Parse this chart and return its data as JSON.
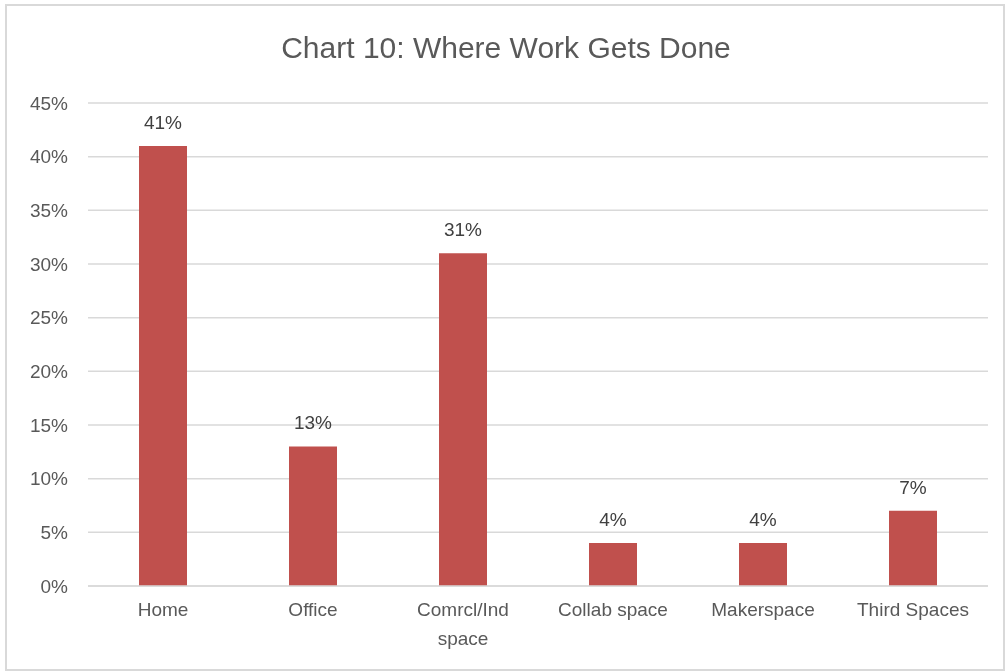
{
  "chart_data": {
    "type": "bar",
    "title": "Chart 10: Where Work Gets Done",
    "categories": [
      "Home",
      "Office",
      "Comrcl/Ind space",
      "Collab space",
      "Makerspace",
      "Third Spaces"
    ],
    "values": [
      41,
      13,
      31,
      4,
      4,
      7
    ],
    "color": "#c0504d",
    "value_labels": [
      "41%",
      "13%",
      "31%",
      "4%",
      "4%",
      "7%"
    ],
    "ylim": [
      0,
      45
    ],
    "yticks": [
      {
        "value": 0,
        "label": "0%"
      },
      {
        "value": 5,
        "label": "5%"
      },
      {
        "value": 10,
        "label": "10%"
      },
      {
        "value": 15,
        "label": "15%"
      },
      {
        "value": 20,
        "label": "20%"
      },
      {
        "value": 25,
        "label": "25%"
      },
      {
        "value": 30,
        "label": "30%"
      },
      {
        "value": 35,
        "label": "35%"
      },
      {
        "value": 40,
        "label": "40%"
      },
      {
        "value": 45,
        "label": "45%"
      }
    ],
    "grid": "y"
  }
}
